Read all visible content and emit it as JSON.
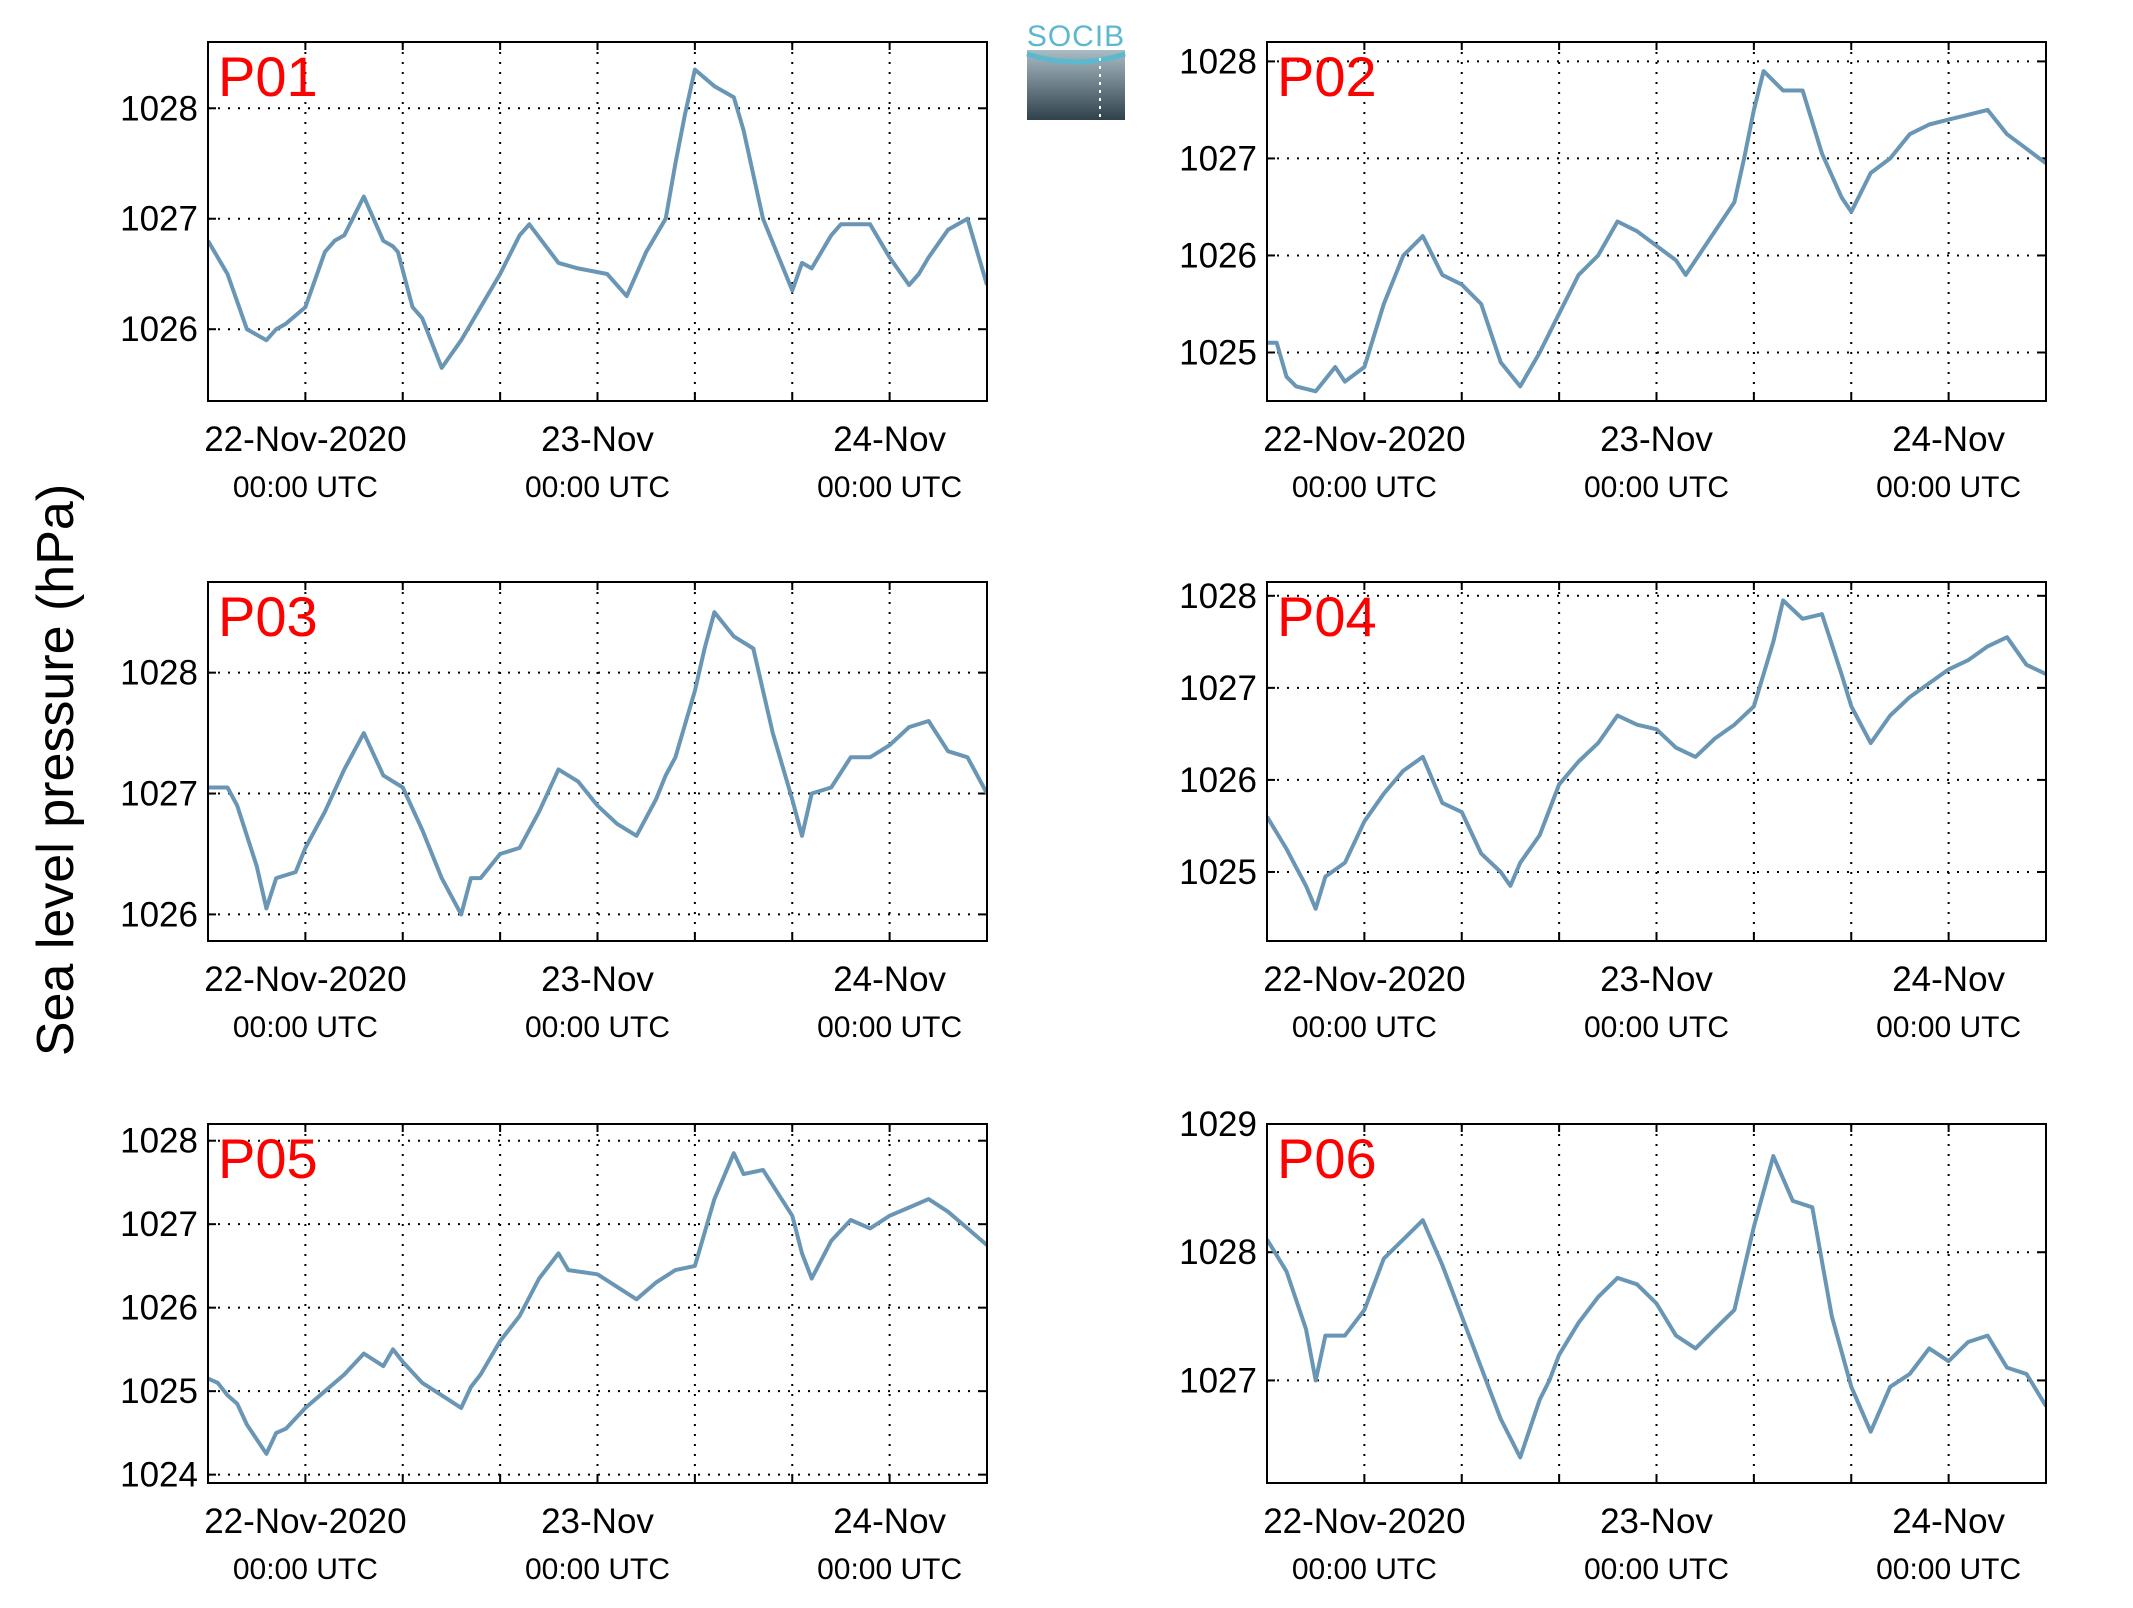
{
  "figure": {
    "ylabel": "Sea level pressure (hPa)",
    "logo_text": "SOCIB"
  },
  "colors": {
    "series": "#6a96b6",
    "panel_label": "#ff0000",
    "axes": "#000000",
    "grid": "#000000"
  },
  "chart_data": [
    {
      "type": "line",
      "panel_label": "P01",
      "x_unit": "hours since 22-Nov-2020 00:00 UTC",
      "xlim": [
        -10,
        70
      ],
      "ylim": [
        1025.35,
        1028.6
      ],
      "yticks": [
        1026,
        1027,
        1028
      ],
      "xticks": [
        {
          "value": 0,
          "label": "22-Nov-2020",
          "sub": "00:00 UTC"
        },
        {
          "value": 30,
          "label": "23-Nov",
          "sub": "00:00 UTC"
        },
        {
          "value": 60,
          "label": "24-Nov",
          "sub": "00:00 UTC"
        }
      ],
      "grid": true,
      "series": [
        {
          "x": [
            -10,
            -8,
            -6,
            -4,
            -3,
            -2,
            0,
            2,
            3,
            4,
            6,
            8,
            9,
            9.5,
            11,
            12,
            14,
            16,
            18,
            20,
            22,
            23,
            26,
            28,
            31,
            33,
            35,
            37,
            38,
            39,
            40,
            42,
            44,
            45,
            47,
            50,
            51,
            52,
            54,
            55,
            56,
            57,
            58,
            60,
            62,
            63,
            64,
            66,
            68,
            70
          ],
          "y": [
            1026.8,
            1026.5,
            1026.0,
            1025.9,
            1026.0,
            1026.05,
            1026.2,
            1026.7,
            1026.8,
            1026.85,
            1027.2,
            1026.8,
            1026.75,
            1026.7,
            1026.2,
            1026.1,
            1025.65,
            1025.9,
            1026.2,
            1026.5,
            1026.85,
            1026.95,
            1026.6,
            1026.55,
            1026.5,
            1026.3,
            1026.7,
            1027.0,
            1027.5,
            1027.95,
            1028.35,
            1028.2,
            1028.1,
            1027.8,
            1027.0,
            1026.35,
            1026.6,
            1026.55,
            1026.85,
            1026.95,
            1026.95,
            1026.95,
            1026.95,
            1026.65,
            1026.4,
            1026.5,
            1026.65,
            1026.9,
            1027.0,
            1026.4
          ]
        }
      ]
    },
    {
      "type": "line",
      "panel_label": "P02",
      "x_unit": "hours since 22-Nov-2020 00:00 UTC",
      "xlim": [
        -10,
        70
      ],
      "ylim": [
        1024.5,
        1028.2
      ],
      "yticks": [
        1025,
        1026,
        1027,
        1028
      ],
      "xticks": [
        {
          "value": 0,
          "label": "22-Nov-2020",
          "sub": "00:00 UTC"
        },
        {
          "value": 30,
          "label": "23-Nov",
          "sub": "00:00 UTC"
        },
        {
          "value": 60,
          "label": "24-Nov",
          "sub": "00:00 UTC"
        }
      ],
      "grid": true,
      "series": [
        {
          "x": [
            -10,
            -9,
            -8,
            -7,
            -5,
            -3,
            -2,
            0,
            2,
            4,
            6,
            8,
            10,
            12,
            14,
            16,
            18,
            20,
            22,
            24,
            26,
            28,
            30,
            32,
            33,
            35,
            37,
            38,
            39,
            40,
            41,
            43,
            45,
            47,
            49,
            50,
            52,
            54,
            56,
            58,
            60,
            62,
            64,
            66,
            68,
            70
          ],
          "y": [
            1025.1,
            1025.1,
            1024.75,
            1024.65,
            1024.6,
            1024.85,
            1024.7,
            1024.85,
            1025.5,
            1026.0,
            1026.2,
            1025.8,
            1025.7,
            1025.5,
            1024.9,
            1024.65,
            1025.0,
            1025.4,
            1025.8,
            1026.0,
            1026.35,
            1026.25,
            1026.1,
            1025.95,
            1025.8,
            1026.1,
            1026.4,
            1026.55,
            1027.0,
            1027.5,
            1027.9,
            1027.7,
            1027.7,
            1027.05,
            1026.6,
            1026.45,
            1026.85,
            1027.0,
            1027.25,
            1027.35,
            1027.4,
            1027.45,
            1027.5,
            1027.25,
            1027.1,
            1026.95
          ]
        }
      ]
    },
    {
      "type": "line",
      "panel_label": "P03",
      "x_unit": "hours since 22-Nov-2020 00:00 UTC",
      "xlim": [
        -10,
        70
      ],
      "ylim": [
        1025.78,
        1028.75
      ],
      "yticks": [
        1026,
        1027,
        1028
      ],
      "xticks": [
        {
          "value": 0,
          "label": "22-Nov-2020",
          "sub": "00:00 UTC"
        },
        {
          "value": 30,
          "label": "23-Nov",
          "sub": "00:00 UTC"
        },
        {
          "value": 60,
          "label": "24-Nov",
          "sub": "00:00 UTC"
        }
      ],
      "grid": true,
      "series": [
        {
          "x": [
            -10,
            -8,
            -7,
            -5,
            -4,
            -3,
            -1,
            0,
            2,
            4,
            6,
            8,
            10,
            12,
            14,
            16,
            17,
            18,
            20,
            22,
            24,
            26,
            28,
            30,
            32,
            34,
            36,
            37,
            38,
            40,
            41,
            42,
            44,
            46,
            48,
            50,
            51,
            52,
            54,
            56,
            58,
            60,
            62,
            64,
            66,
            68,
            70
          ],
          "y": [
            1027.05,
            1027.05,
            1026.9,
            1026.4,
            1026.05,
            1026.3,
            1026.35,
            1026.55,
            1026.85,
            1027.2,
            1027.5,
            1027.15,
            1027.05,
            1026.7,
            1026.3,
            1026.0,
            1026.3,
            1026.3,
            1026.5,
            1026.55,
            1026.85,
            1027.2,
            1027.1,
            1026.9,
            1026.75,
            1026.65,
            1026.95,
            1027.15,
            1027.3,
            1027.85,
            1028.2,
            1028.5,
            1028.3,
            1028.2,
            1027.5,
            1026.95,
            1026.65,
            1027.0,
            1027.05,
            1027.3,
            1027.3,
            1027.4,
            1027.55,
            1027.6,
            1027.35,
            1027.3,
            1027.0
          ]
        }
      ]
    },
    {
      "type": "line",
      "panel_label": "P04",
      "x_unit": "hours since 22-Nov-2020 00:00 UTC",
      "xlim": [
        -10,
        70
      ],
      "ylim": [
        1024.25,
        1028.15
      ],
      "yticks": [
        1025,
        1026,
        1027,
        1028
      ],
      "xticks": [
        {
          "value": 0,
          "label": "22-Nov-2020",
          "sub": "00:00 UTC"
        },
        {
          "value": 30,
          "label": "23-Nov",
          "sub": "00:00 UTC"
        },
        {
          "value": 60,
          "label": "24-Nov",
          "sub": "00:00 UTC"
        }
      ],
      "grid": true,
      "series": [
        {
          "x": [
            -10,
            -8,
            -7,
            -6,
            -5,
            -4,
            -2,
            0,
            2,
            4,
            6,
            8,
            10,
            12,
            14,
            15,
            16,
            18,
            20,
            22,
            24,
            26,
            28,
            30,
            32,
            34,
            36,
            38,
            40,
            42,
            43,
            45,
            47,
            49,
            50,
            52,
            54,
            56,
            58,
            60,
            62,
            64,
            66,
            68,
            70
          ],
          "y": [
            1025.6,
            1025.25,
            1025.05,
            1024.85,
            1024.6,
            1024.95,
            1025.1,
            1025.55,
            1025.85,
            1026.1,
            1026.25,
            1025.75,
            1025.65,
            1025.2,
            1025.0,
            1024.85,
            1025.1,
            1025.4,
            1025.95,
            1026.2,
            1026.4,
            1026.7,
            1026.6,
            1026.55,
            1026.35,
            1026.25,
            1026.45,
            1026.6,
            1026.8,
            1027.5,
            1027.95,
            1027.75,
            1027.8,
            1027.15,
            1026.8,
            1026.4,
            1026.7,
            1026.9,
            1027.05,
            1027.2,
            1027.3,
            1027.45,
            1027.55,
            1027.25,
            1027.15
          ]
        }
      ]
    },
    {
      "type": "line",
      "panel_label": "P05",
      "x_unit": "hours since 22-Nov-2020 00:00 UTC",
      "xlim": [
        -10,
        70
      ],
      "ylim": [
        1023.9,
        1028.2
      ],
      "yticks": [
        1024,
        1025,
        1026,
        1027,
        1028
      ],
      "xticks": [
        {
          "value": 0,
          "label": "22-Nov-2020",
          "sub": "00:00 UTC"
        },
        {
          "value": 30,
          "label": "23-Nov",
          "sub": "00:00 UTC"
        },
        {
          "value": 60,
          "label": "24-Nov",
          "sub": "00:00 UTC"
        }
      ],
      "grid": true,
      "series": [
        {
          "x": [
            -10,
            -9,
            -8,
            -7,
            -6,
            -4,
            -3,
            -2,
            0,
            2,
            4,
            6,
            8,
            9,
            10,
            12,
            14,
            16,
            17,
            18,
            20,
            22,
            24,
            26,
            27,
            30,
            32,
            34,
            36,
            38,
            40,
            42,
            44,
            45,
            47,
            50,
            51,
            52,
            54,
            56,
            58,
            60,
            62,
            64,
            66,
            68,
            70
          ],
          "y": [
            1025.15,
            1025.1,
            1024.95,
            1024.85,
            1024.6,
            1024.25,
            1024.5,
            1024.55,
            1024.8,
            1025.0,
            1025.2,
            1025.45,
            1025.3,
            1025.5,
            1025.35,
            1025.1,
            1024.95,
            1024.8,
            1025.05,
            1025.2,
            1025.6,
            1025.9,
            1026.35,
            1026.65,
            1026.45,
            1026.4,
            1026.25,
            1026.1,
            1026.3,
            1026.45,
            1026.5,
            1027.3,
            1027.85,
            1027.6,
            1027.65,
            1027.1,
            1026.65,
            1026.35,
            1026.8,
            1027.05,
            1026.95,
            1027.1,
            1027.2,
            1027.3,
            1027.15,
            1026.95,
            1026.75
          ]
        }
      ]
    },
    {
      "type": "line",
      "panel_label": "P06",
      "x_unit": "hours since 22-Nov-2020 00:00 UTC",
      "xlim": [
        -10,
        70
      ],
      "ylim": [
        1026.2,
        1029.0
      ],
      "yticks": [
        1027,
        1028,
        1029
      ],
      "xticks": [
        {
          "value": 0,
          "label": "22-Nov-2020",
          "sub": "00:00 UTC"
        },
        {
          "value": 30,
          "label": "23-Nov",
          "sub": "00:00 UTC"
        },
        {
          "value": 60,
          "label": "24-Nov",
          "sub": "00:00 UTC"
        }
      ],
      "grid": true,
      "series": [
        {
          "x": [
            -10,
            -8,
            -6,
            -5,
            -4,
            -2,
            0,
            2,
            4,
            6,
            8,
            10,
            12,
            14,
            16,
            18,
            19,
            20,
            22,
            24,
            26,
            28,
            30,
            32,
            34,
            36,
            38,
            40,
            42,
            44,
            46,
            48,
            50,
            52,
            54,
            56,
            58,
            60,
            62,
            64,
            66,
            68,
            70
          ],
          "y": [
            1028.1,
            1027.85,
            1027.4,
            1027.0,
            1027.35,
            1027.35,
            1027.55,
            1027.95,
            1028.1,
            1028.25,
            1027.9,
            1027.5,
            1027.1,
            1026.7,
            1026.4,
            1026.85,
            1027.0,
            1027.2,
            1027.45,
            1027.65,
            1027.8,
            1027.75,
            1027.6,
            1027.35,
            1027.25,
            1027.4,
            1027.55,
            1028.2,
            1028.75,
            1028.4,
            1028.35,
            1027.5,
            1026.95,
            1026.6,
            1026.95,
            1027.05,
            1027.25,
            1027.15,
            1027.3,
            1027.35,
            1027.1,
            1027.05,
            1026.8
          ]
        }
      ]
    }
  ]
}
